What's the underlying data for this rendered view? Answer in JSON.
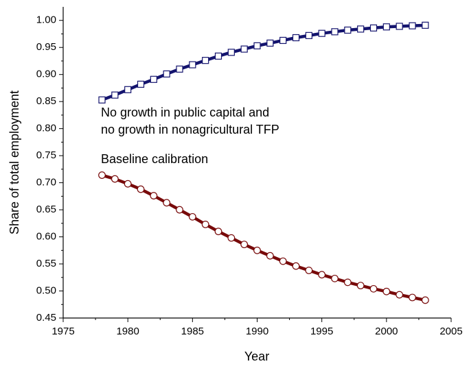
{
  "chart_data": {
    "type": "line",
    "x_label": "Year",
    "y_label": "Share of total employment",
    "x": [
      1978,
      1979,
      1980,
      1981,
      1982,
      1983,
      1984,
      1985,
      1986,
      1987,
      1988,
      1989,
      1990,
      1991,
      1992,
      1993,
      1994,
      1995,
      1996,
      1997,
      1998,
      1999,
      2000,
      2001,
      2002,
      2003
    ],
    "series": [
      {
        "color": "#14146e",
        "marker": "square",
        "values": [
          0.853,
          0.862,
          0.872,
          0.882,
          0.891,
          0.901,
          0.91,
          0.918,
          0.926,
          0.934,
          0.941,
          0.947,
          0.953,
          0.958,
          0.963,
          0.968,
          0.972,
          0.976,
          0.979,
          0.982,
          0.984,
          0.986,
          0.988,
          0.989,
          0.99,
          0.991
        ]
      },
      {
        "color": "#780a0a",
        "marker": "circle",
        "values": [
          0.714,
          0.707,
          0.698,
          0.688,
          0.676,
          0.663,
          0.65,
          0.637,
          0.623,
          0.61,
          0.598,
          0.586,
          0.575,
          0.565,
          0.555,
          0.546,
          0.538,
          0.53,
          0.523,
          0.516,
          0.51,
          0.504,
          0.499,
          0.493,
          0.488,
          0.483
        ]
      }
    ],
    "annotations": [
      {
        "lines": [
          "No growth in public capital and",
          "no growth in nonagricultural TFP"
        ]
      },
      {
        "lines": [
          "Baseline calibration"
        ]
      }
    ],
    "xlim": [
      1975,
      2005
    ],
    "xticks": [
      1975,
      1980,
      1985,
      1990,
      1995,
      2000,
      2005
    ],
    "ylim": [
      0.45,
      1.025
    ],
    "yticks": [
      0.45,
      {
        "value": 0.5,
        "label": "0.50"
      },
      0.55,
      {
        "value": 0.6,
        "label": "0.60"
      },
      0.65,
      {
        "value": 0.7,
        "label": "0.70"
      },
      0.75,
      {
        "value": 0.8,
        "label": "0.80"
      },
      0.85,
      {
        "value": 0.9,
        "label": "0.90"
      },
      0.95,
      {
        "value": 1,
        "label": "1.00"
      }
    ],
    "grid": false
  }
}
